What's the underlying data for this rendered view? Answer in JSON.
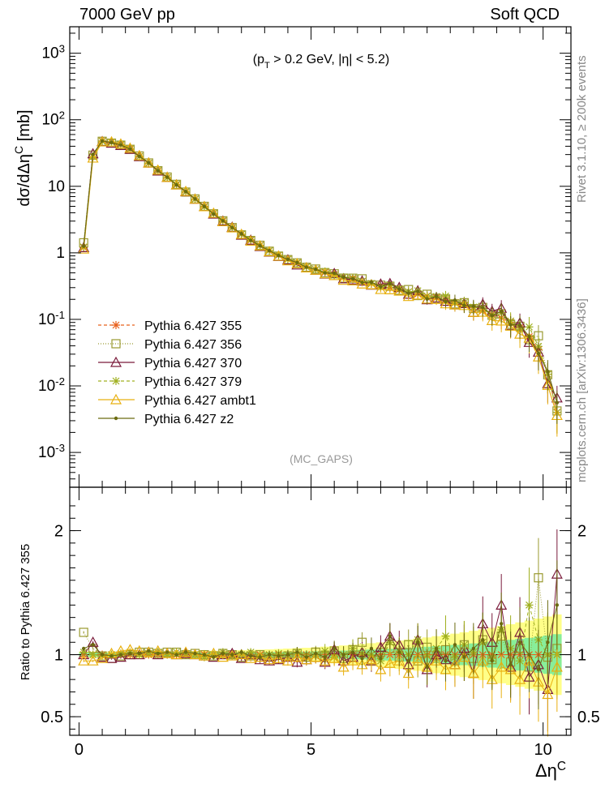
{
  "header": {
    "left": "7000 GeV pp",
    "right": "Soft QCD",
    "cuts": "(p_T > 0.2 GeV, |η| < 5.2)",
    "watermark": "(MC_GAPS)"
  },
  "side_labels": {
    "rivet": "Rivet 3.1.10, ≥ 200k events",
    "mcplots": "mcplots.cern.ch [arXiv:1306.3436]"
  },
  "chart_data": [
    {
      "type": "line",
      "panel": "main",
      "ylabel": "dσ/dΔη^C [mb]",
      "yscale": "log",
      "ylim": [
        0.0003,
        2500
      ],
      "xlim": [
        -0.2,
        10.6
      ],
      "ytick_labels": [
        "10^-3",
        "10^-2",
        "10^-1",
        "1",
        "10",
        "10^2",
        "10^3"
      ],
      "legend_position": "center-left",
      "x": [
        0.1,
        0.3,
        0.5,
        0.7,
        0.9,
        1.1,
        1.3,
        1.5,
        1.7,
        1.9,
        2.1,
        2.3,
        2.5,
        2.7,
        2.9,
        3.1,
        3.3,
        3.5,
        3.7,
        3.9,
        4.1,
        4.3,
        4.5,
        4.7,
        4.9,
        5.1,
        5.3,
        5.5,
        5.7,
        5.9,
        6.1,
        6.3,
        6.5,
        6.7,
        6.9,
        7.1,
        7.3,
        7.5,
        7.7,
        7.9,
        8.1,
        8.3,
        8.5,
        8.7,
        8.9,
        9.1,
        9.3,
        9.5,
        9.7,
        9.9,
        10.1,
        10.3
      ],
      "reference": [
        1.2,
        28,
        48,
        46,
        42,
        36,
        28,
        22,
        17,
        13.5,
        10.5,
        8.2,
        6.4,
        5.0,
        3.9,
        3.0,
        2.4,
        1.9,
        1.55,
        1.3,
        1.08,
        0.92,
        0.8,
        0.7,
        0.62,
        0.56,
        0.51,
        0.47,
        0.43,
        0.4,
        0.37,
        0.345,
        0.32,
        0.3,
        0.28,
        0.26,
        0.24,
        0.225,
        0.21,
        0.195,
        0.18,
        0.165,
        0.15,
        0.135,
        0.12,
        0.105,
        0.09,
        0.075,
        0.055,
        0.035,
        0.015,
        0.004
      ],
      "series": [
        {
          "name": "Pythia 6.427 355",
          "color": "#e8601c",
          "marker": "star",
          "dash": "4,3",
          "ratio": [
            1.0,
            1.0,
            1.0,
            1.0,
            1.0,
            1.0,
            1.0,
            1.0,
            1.0,
            1.0,
            1.0,
            1.0,
            1.0,
            1.0,
            1.0,
            1.0,
            1.0,
            1.0,
            1.0,
            1.0,
            1.0,
            1.0,
            1.0,
            1.0,
            1.0,
            1.0,
            1.0,
            1.0,
            1.0,
            1.0,
            1.0,
            1.0,
            1.0,
            1.0,
            1.0,
            1.0,
            1.0,
            1.0,
            1.0,
            1.0,
            1.0,
            1.0,
            1.0,
            1.0,
            1.0,
            1.0,
            1.0,
            1.0,
            1.0,
            1.0,
            1.0,
            1.0
          ]
        },
        {
          "name": "Pythia 6.427 356",
          "color": "#9a9a30",
          "marker": "square",
          "dash": "1,2",
          "ratio": [
            1.18,
            1.05,
            0.99,
            0.97,
            0.99,
            1.0,
            1.02,
            1.02,
            1.01,
            1.02,
            1.02,
            1.0,
            1.01,
            1.0,
            0.99,
            1.01,
            1.0,
            0.98,
            0.99,
            1.0,
            0.98,
            0.97,
            0.99,
            1.01,
            0.98,
            1.02,
            0.99,
            1.03,
            0.97,
            1.04,
            1.1,
            0.96,
            1.02,
            1.05,
            0.98,
            1.08,
            0.95,
            1.06,
            0.99,
            1.04,
            0.95,
            1.08,
            0.97,
            1.12,
            0.96,
            1.15,
            0.94,
            1.05,
            0.9,
            1.62,
            0.98,
            1.05
          ]
        },
        {
          "name": "Pythia 6.427 370",
          "color": "#7a1a3a",
          "marker": "triangle",
          "dash": "",
          "ratio": [
            1.0,
            1.1,
            0.98,
            0.97,
            0.98,
            1.0,
            1.0,
            1.02,
            1.0,
            1.01,
            1.0,
            1.01,
            1.0,
            0.99,
            0.98,
            1.0,
            1.01,
            0.97,
            1.0,
            0.96,
            0.95,
            0.96,
            0.98,
            0.94,
            0.96,
            0.98,
            0.94,
            1.04,
            0.95,
            0.98,
            1.02,
            0.95,
            1.06,
            1.15,
            1.08,
            0.92,
            1.12,
            0.88,
            1.0,
            0.96,
            0.92,
            1.05,
            0.85,
            1.25,
            1.1,
            1.4,
            0.9,
            1.18,
            0.82,
            0.92,
            0.72,
            1.65
          ]
        },
        {
          "name": "Pythia 6.427 379",
          "color": "#a0b020",
          "marker": "star",
          "dash": "4,3",
          "ratio": [
            1.02,
            1.0,
            0.99,
            1.0,
            1.01,
            1.02,
            1.0,
            1.01,
            1.02,
            1.0,
            1.02,
            1.01,
            1.0,
            0.98,
            1.0,
            1.02,
            0.99,
            1.0,
            1.02,
            0.99,
            1.0,
            1.01,
            1.0,
            1.02,
            0.99,
            1.0,
            1.03,
            0.98,
            1.0,
            1.05,
            1.01,
            1.0,
            0.95,
            1.1,
            1.03,
            1.0,
            1.12,
            0.99,
            1.05,
            1.15,
            0.98,
            1.08,
            1.02,
            1.1,
            0.97,
            1.2,
            1.05,
            0.95,
            1.4,
            1.12,
            1.0,
            1.0
          ]
        },
        {
          "name": "Pythia 6.427 ambt1",
          "color": "#e8b010",
          "marker": "triangle",
          "dash": "",
          "ratio": [
            0.95,
            0.95,
            0.97,
            1.01,
            1.03,
            1.04,
            1.03,
            1.02,
            1.03,
            1.01,
            1.0,
            1.02,
            1.0,
            0.99,
            1.01,
            0.98,
            0.99,
            1.0,
            0.97,
            0.98,
            0.96,
            0.97,
            0.95,
            0.98,
            0.96,
            0.98,
            0.95,
            0.97,
            0.9,
            0.95,
            0.92,
            0.96,
            0.88,
            0.93,
            0.95,
            0.85,
            0.97,
            0.9,
            0.95,
            0.88,
            0.92,
            0.98,
            0.85,
            0.95,
            0.8,
            0.9,
            0.88,
            0.8,
            0.95,
            0.78,
            0.68,
            0.9
          ]
        },
        {
          "name": "Pythia 6.427 z2",
          "color": "#6b6b10",
          "marker": "dot",
          "dash": "",
          "ratio": [
            1.05,
            1.08,
            1.0,
            0.99,
            1.0,
            1.01,
            1.01,
            1.03,
            1.01,
            1.02,
            1.0,
            1.02,
            1.01,
            1.0,
            0.98,
            1.01,
            1.0,
            1.02,
            0.99,
            0.98,
            1.0,
            0.99,
            1.0,
            1.02,
            0.98,
            1.01,
            0.98,
            1.05,
            1.0,
            1.02,
            0.97,
            1.05,
            0.97,
            1.15,
            1.02,
            0.95,
            1.1,
            0.9,
            1.05,
            0.95,
            1.08,
            0.98,
            1.05,
            1.12,
            0.95,
            1.25,
            0.92,
            1.1,
            1.0,
            0.88,
            1.1,
            1.4
          ]
        }
      ]
    },
    {
      "type": "line",
      "panel": "ratio",
      "ylabel": "Ratio to Pythia 6.427 355",
      "xlabel": "Δη^C",
      "ylim": [
        0.35,
        2.35
      ],
      "xlim": [
        -0.2,
        10.6
      ],
      "ytick_labels": [
        "0.5",
        "1",
        "2"
      ],
      "xtick_labels": [
        "0",
        "5",
        "10"
      ],
      "reference_line": 1.0
    }
  ]
}
